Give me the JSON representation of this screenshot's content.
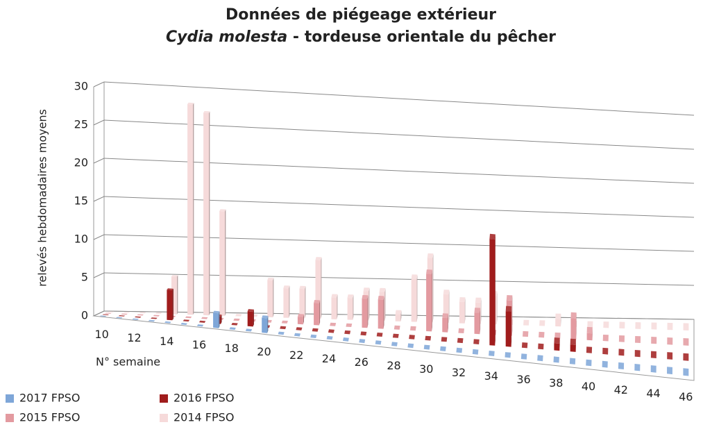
{
  "chart_data": {
    "type": "bar3d",
    "title": "Données de piégeage  extérieur",
    "title_line2": {
      "species": "Cydia molesta",
      "rest": " - tordeuse orientale du pêcher"
    },
    "ylabel": "relevés hebdomadaires moyens",
    "xlabel": "N° semaine",
    "categories": [
      10,
      null,
      12,
      null,
      14,
      null,
      16,
      null,
      18,
      null,
      20,
      null,
      22,
      null,
      24,
      null,
      26,
      null,
      28,
      null,
      30,
      null,
      32,
      null,
      34,
      null,
      36,
      null,
      38,
      null,
      40,
      null,
      42,
      null,
      44,
      null,
      46
    ],
    "ylim": [
      0,
      30
    ],
    "yticks": [
      0,
      5,
      10,
      15,
      20,
      25,
      30
    ],
    "grid": true,
    "series": [
      {
        "name": "2017 FPSO",
        "color": "#7ea6d8",
        "values": [
          0,
          0,
          0,
          0,
          0,
          0,
          0,
          2,
          0,
          0,
          2,
          0,
          0,
          0,
          0,
          0,
          0,
          0,
          0,
          0,
          0,
          0,
          0,
          0,
          0,
          0,
          0,
          0,
          0,
          0,
          0,
          0,
          0,
          0,
          0,
          0,
          0
        ]
      },
      {
        "name": "2016 FPSO",
        "color": "#a01c1c",
        "values": [
          0,
          0,
          0,
          0,
          4,
          0,
          0,
          1,
          0,
          2,
          0,
          0,
          0,
          0,
          0,
          0,
          0,
          0,
          0,
          0,
          0,
          0,
          0,
          0,
          15,
          5,
          0,
          0,
          1,
          1,
          0,
          0,
          0,
          0,
          0,
          0,
          0
        ]
      },
      {
        "name": "2015 FPSO",
        "color": "#e39aa0",
        "values": [
          0,
          0,
          0,
          0,
          0,
          0,
          0,
          0,
          0,
          0,
          0,
          0,
          1,
          3,
          0,
          0,
          4,
          4,
          0,
          0,
          8,
          2,
          0,
          3,
          0,
          5,
          0,
          0,
          0,
          3,
          1,
          0,
          0,
          0,
          0,
          0,
          0
        ]
      },
      {
        "name": "2014 FPSO",
        "color": "#f6dada",
        "values": [
          0,
          0,
          0,
          0,
          5,
          28,
          27,
          14,
          0,
          0,
          5,
          4,
          4,
          8,
          3,
          3,
          4,
          4,
          1,
          6,
          9,
          4,
          3,
          3,
          4,
          0,
          0,
          0,
          1,
          0,
          0,
          0,
          0,
          0,
          0,
          0,
          0
        ]
      }
    ]
  }
}
